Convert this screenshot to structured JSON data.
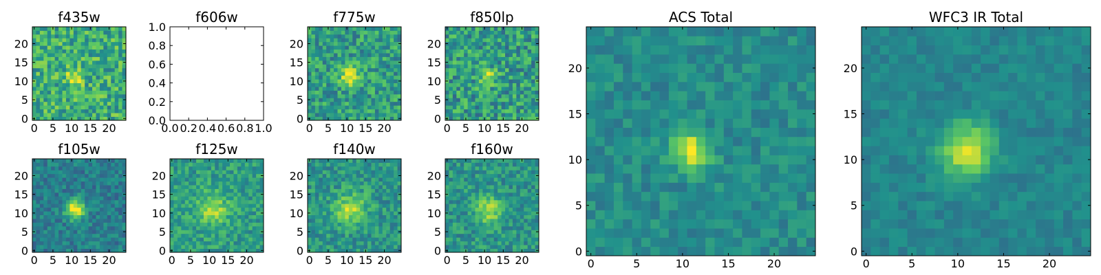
{
  "figure": {
    "colormap": "viridis",
    "colormap_stops": [
      "#440154",
      "#3b528b",
      "#21918c",
      "#5ec962",
      "#fde725"
    ]
  },
  "chart_data": [
    {
      "type": "heatmap",
      "title": "f435w",
      "grid_size": [
        25,
        25
      ],
      "peak": [
        11,
        11
      ],
      "peak_sigma": 1.5,
      "peak_amplitude": 0.45,
      "background": 0.62,
      "noise": 0.22,
      "xticks": [
        0,
        5,
        10,
        15,
        20
      ],
      "yticks": [
        0,
        5,
        10,
        15,
        20
      ],
      "xlim": [
        -0.5,
        24.5
      ],
      "ylim": [
        -0.5,
        24.5
      ]
    },
    {
      "type": "empty",
      "title": "f606w",
      "xticks": [
        "0.0",
        "0.2",
        "0.4",
        "0.6",
        "0.8",
        "1.0"
      ],
      "yticks": [
        "0.0",
        "0.2",
        "0.4",
        "0.6",
        "0.8",
        "1.0"
      ],
      "xlim": [
        0,
        1
      ],
      "ylim": [
        0,
        1
      ]
    },
    {
      "type": "heatmap",
      "title": "f775w",
      "grid_size": [
        25,
        25
      ],
      "peak": [
        11,
        11
      ],
      "peak_sigma": 1.8,
      "peak_amplitude": 0.45,
      "background": 0.55,
      "noise": 0.2,
      "xticks": [
        0,
        5,
        10,
        15,
        20
      ],
      "yticks": [
        0,
        5,
        10,
        15,
        20
      ],
      "xlim": [
        -0.5,
        24.5
      ],
      "ylim": [
        -0.5,
        24.5
      ]
    },
    {
      "type": "heatmap",
      "title": "f850lp",
      "grid_size": [
        25,
        25
      ],
      "peak": [
        11,
        11
      ],
      "peak_sigma": 1.6,
      "peak_amplitude": 0.35,
      "background": 0.55,
      "noise": 0.22,
      "xticks": [
        0,
        5,
        10,
        15,
        20
      ],
      "yticks": [
        0,
        5,
        10,
        15,
        20
      ],
      "xlim": [
        -0.5,
        24.5
      ],
      "ylim": [
        -0.5,
        24.5
      ]
    },
    {
      "type": "heatmap",
      "title": "f105w",
      "grid_size": [
        25,
        25
      ],
      "peak": [
        11,
        11
      ],
      "peak_sigma": 1.8,
      "peak_amplitude": 0.65,
      "background": 0.42,
      "noise": 0.13,
      "xticks": [
        0,
        5,
        10,
        15,
        20
      ],
      "yticks": [
        0,
        5,
        10,
        15,
        20
      ],
      "xlim": [
        -0.5,
        24.5
      ],
      "ylim": [
        -0.5,
        24.5
      ]
    },
    {
      "type": "heatmap",
      "title": "f125w",
      "grid_size": [
        25,
        25
      ],
      "peak": [
        11,
        11
      ],
      "peak_sigma": 3.0,
      "peak_amplitude": 0.3,
      "background": 0.55,
      "noise": 0.15,
      "xticks": [
        0,
        5,
        10,
        15,
        20
      ],
      "yticks": [
        0,
        5,
        10,
        15,
        20
      ],
      "xlim": [
        -0.5,
        24.5
      ],
      "ylim": [
        -0.5,
        24.5
      ]
    },
    {
      "type": "heatmap",
      "title": "f140w",
      "grid_size": [
        25,
        25
      ],
      "peak": [
        11,
        11
      ],
      "peak_sigma": 3.0,
      "peak_amplitude": 0.35,
      "background": 0.52,
      "noise": 0.15,
      "xticks": [
        0,
        5,
        10,
        15,
        20
      ],
      "yticks": [
        0,
        5,
        10,
        15,
        20
      ],
      "xlim": [
        -0.5,
        24.5
      ],
      "ylim": [
        -0.5,
        24.5
      ]
    },
    {
      "type": "heatmap",
      "title": "f160w",
      "grid_size": [
        25,
        25
      ],
      "peak": [
        11,
        11
      ],
      "peak_sigma": 2.5,
      "peak_amplitude": 0.35,
      "background": 0.52,
      "noise": 0.15,
      "xticks": [
        0,
        5,
        10,
        15,
        20
      ],
      "yticks": [
        0,
        5,
        10,
        15,
        20
      ],
      "xlim": [
        -0.5,
        24.5
      ],
      "ylim": [
        -0.5,
        24.5
      ]
    },
    {
      "type": "heatmap",
      "title": "ACS Total",
      "grid_size": [
        25,
        25
      ],
      "peak": [
        11,
        11
      ],
      "peak_sigma": 1.4,
      "peak_amplitude": 0.5,
      "background": 0.48,
      "noise": 0.1,
      "xticks": [
        0,
        5,
        10,
        15,
        20
      ],
      "yticks": [
        0,
        5,
        10,
        15,
        20
      ],
      "xlim": [
        -0.5,
        24.5
      ],
      "ylim": [
        -0.5,
        24.5
      ]
    },
    {
      "type": "heatmap",
      "title": "WFC3 IR Total",
      "grid_size": [
        25,
        25
      ],
      "peak": [
        11,
        11
      ],
      "peak_sigma": 2.0,
      "peak_amplitude": 0.5,
      "background": 0.45,
      "noise": 0.07,
      "xticks": [
        0,
        5,
        10,
        15,
        20
      ],
      "yticks": [
        0,
        5,
        10,
        15,
        20
      ],
      "xlim": [
        -0.5,
        24.5
      ],
      "ylim": [
        -0.5,
        24.5
      ]
    }
  ]
}
